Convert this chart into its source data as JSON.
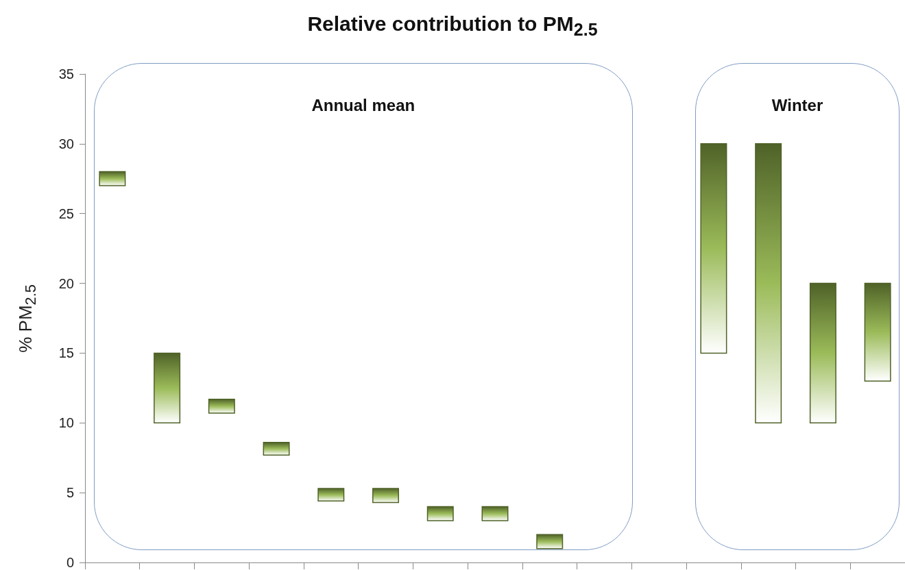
{
  "chart_data": {
    "type": "bar",
    "title": "Relative contribution to PM$_{2.5}$",
    "ylabel": "% PM$_{2.5}$",
    "annotations": [
      "Annual mean",
      "Winter"
    ],
    "categories": [
      null,
      null,
      null,
      null,
      null,
      null,
      null,
      null,
      null,
      null,
      null,
      null,
      null,
      null,
      null
    ],
    "base": [
      27,
      10,
      10.7,
      7.7,
      4.4,
      4.3,
      3,
      3,
      1,
      null,
      null,
      15,
      10,
      10,
      13
    ],
    "values": [
      1,
      5,
      1,
      0.9,
      0.9,
      1,
      1,
      1,
      1,
      null,
      null,
      15,
      20,
      10,
      7
    ],
    "color": "#4f6228",
    "ylim": [
      0,
      35
    ],
    "yticks": [
      0,
      5,
      10,
      15,
      20,
      25,
      30,
      35
    ],
    "grid": false,
    "tick_labels": "y"
  }
}
